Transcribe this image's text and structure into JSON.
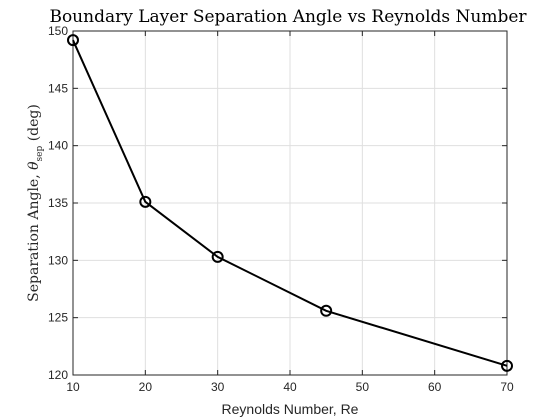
{
  "chart_data": {
    "type": "line",
    "title": "Boundary Layer Separation Angle vs Reynolds Number",
    "xlabel": "Reynolds Number, Re",
    "ylabel": "Separation Angle, θ_sep (deg)",
    "ylabel_parts": {
      "prefix": "Separation Angle, ",
      "symbol": "θ",
      "subscript": "sep",
      "suffix": " (deg)"
    },
    "xlim": [
      10,
      70
    ],
    "ylim": [
      120,
      150
    ],
    "xticks": [
      10,
      20,
      30,
      40,
      50,
      60,
      70
    ],
    "yticks": [
      120,
      125,
      130,
      135,
      140,
      145,
      150
    ],
    "grid": true,
    "series": [
      {
        "marker": "circle",
        "color": "#000000",
        "x": [
          10,
          20,
          30,
          45,
          70
        ],
        "y": [
          149.2,
          135.1,
          130.3,
          125.6,
          120.8
        ]
      }
    ]
  }
}
